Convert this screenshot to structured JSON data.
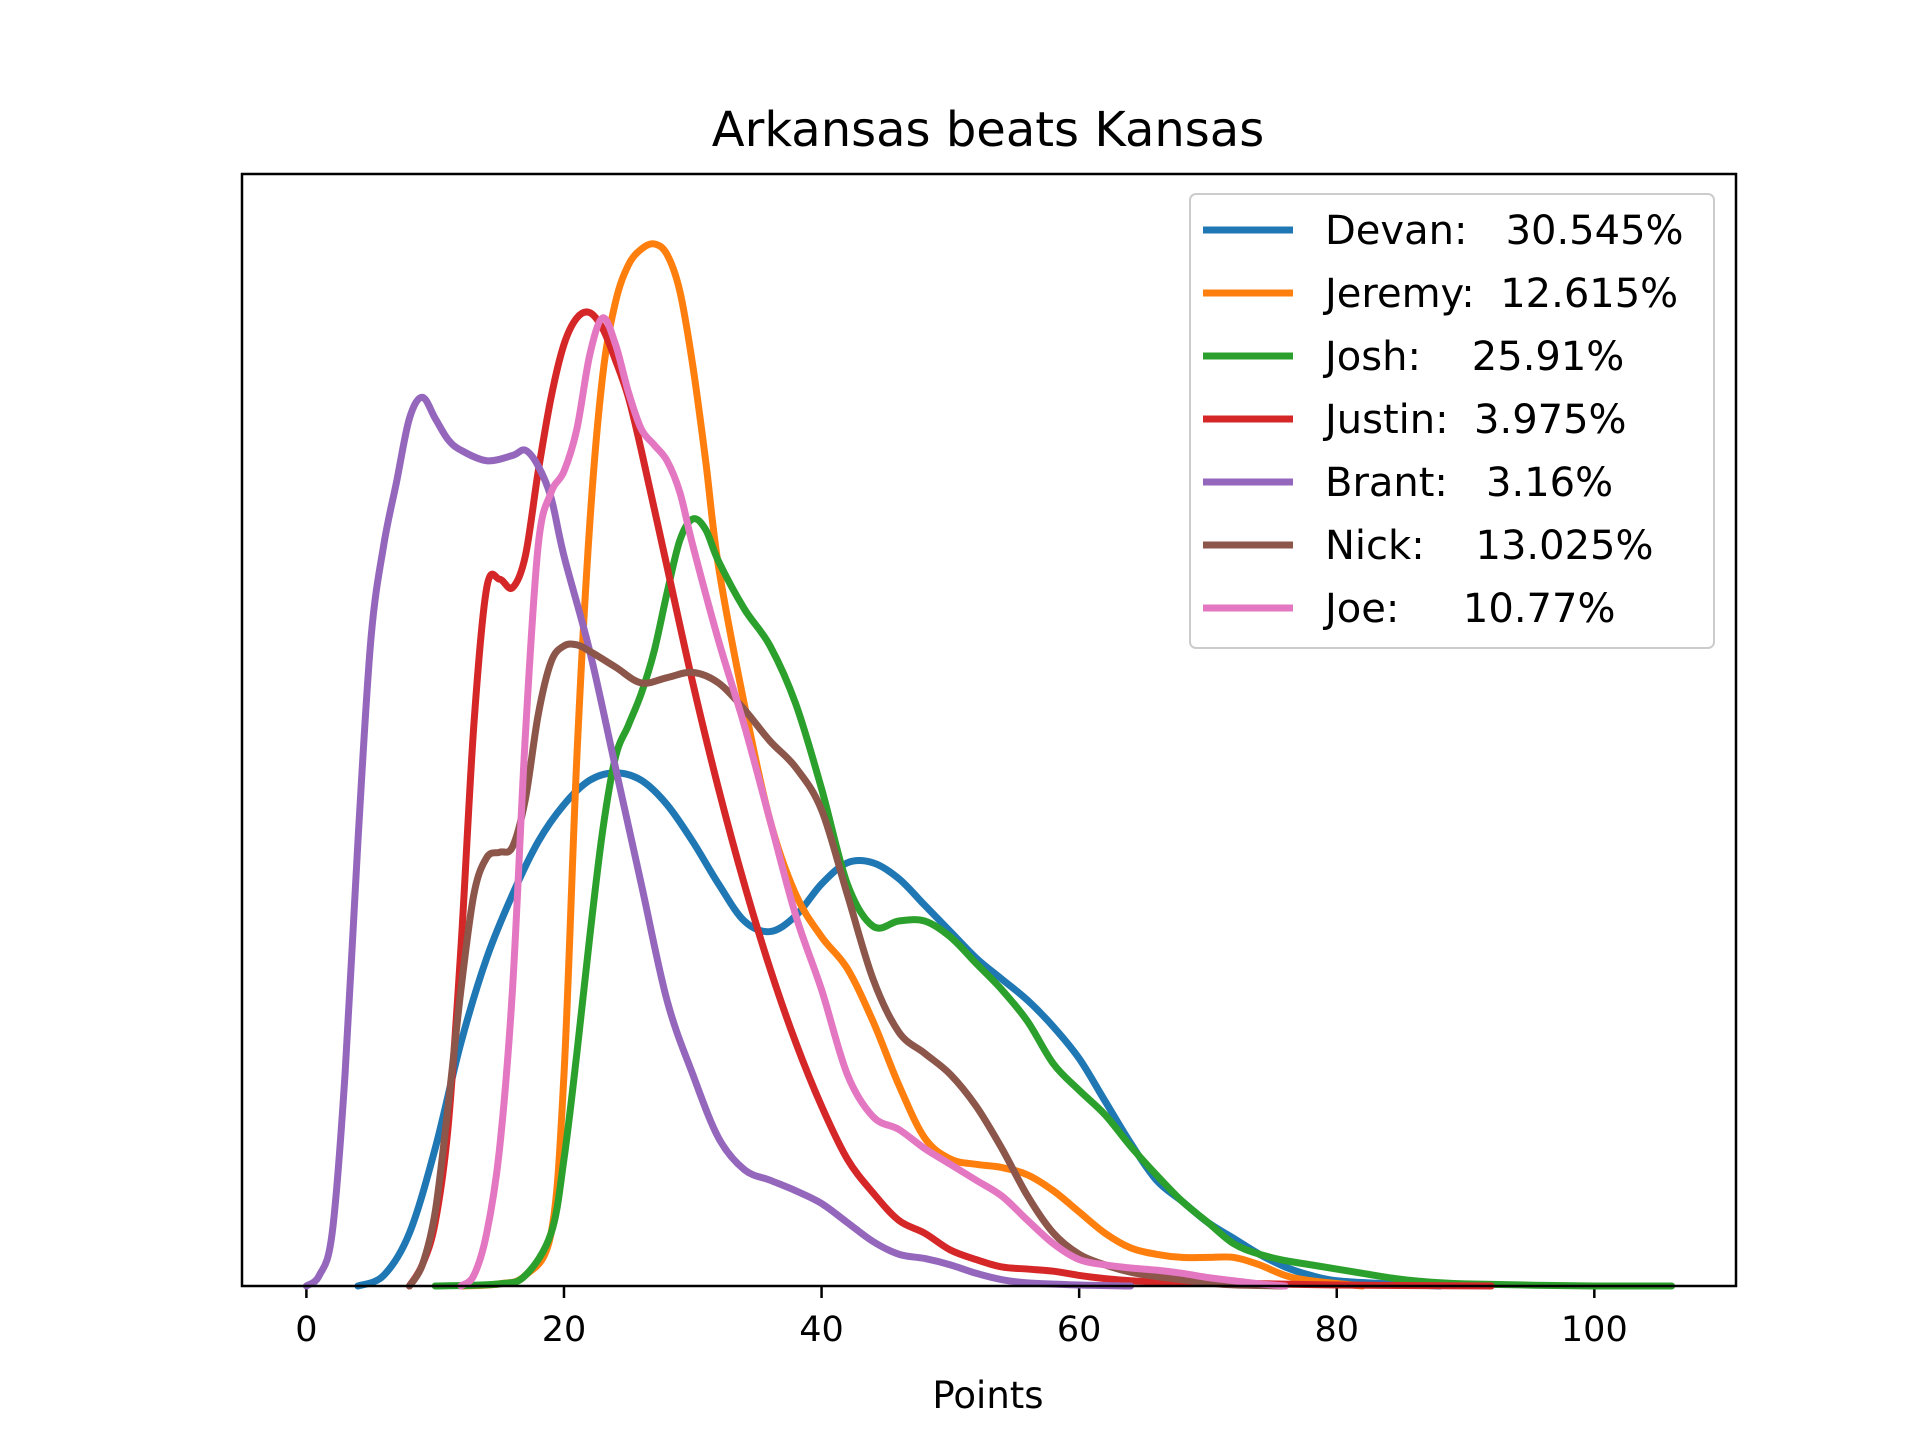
{
  "chart_data": {
    "type": "line",
    "title": "Arkansas beats Kansas",
    "xlabel": "Points",
    "ylabel": "",
    "xlim": [
      -5,
      111
    ],
    "ylim": [
      0,
      1.0
    ],
    "x_ticks": [
      "0",
      "20",
      "40",
      "60",
      "80",
      "100"
    ],
    "y_ticks_shown": false,
    "legend_position": "top-right",
    "series": [
      {
        "name": "Devan:   30.545%",
        "color": "#1f77b4",
        "points": [
          [
            4,
            0
          ],
          [
            6,
            0.01
          ],
          [
            8,
            0.05
          ],
          [
            10,
            0.13
          ],
          [
            12,
            0.23
          ],
          [
            14,
            0.31
          ],
          [
            16,
            0.37
          ],
          [
            18,
            0.42
          ],
          [
            20,
            0.455
          ],
          [
            22,
            0.478
          ],
          [
            24,
            0.485
          ],
          [
            26,
            0.478
          ],
          [
            28,
            0.455
          ],
          [
            30,
            0.42
          ],
          [
            32,
            0.38
          ],
          [
            34,
            0.345
          ],
          [
            36,
            0.335
          ],
          [
            38,
            0.35
          ],
          [
            40,
            0.38
          ],
          [
            42,
            0.4
          ],
          [
            44,
            0.4
          ],
          [
            46,
            0.385
          ],
          [
            48,
            0.36
          ],
          [
            50,
            0.335
          ],
          [
            52,
            0.31
          ],
          [
            54,
            0.29
          ],
          [
            56,
            0.27
          ],
          [
            58,
            0.245
          ],
          [
            60,
            0.215
          ],
          [
            62,
            0.175
          ],
          [
            64,
            0.135
          ],
          [
            66,
            0.1
          ],
          [
            68,
            0.08
          ],
          [
            70,
            0.06
          ],
          [
            72,
            0.045
          ],
          [
            74,
            0.03
          ],
          [
            76,
            0.018
          ],
          [
            78,
            0.01
          ],
          [
            80,
            0.005
          ],
          [
            84,
            0.002
          ],
          [
            88,
            0
          ]
        ]
      },
      {
        "name": "Jeremy:  12.615%",
        "color": "#ff7f0e",
        "points": [
          [
            12,
            0
          ],
          [
            15,
            0.002
          ],
          [
            17,
            0.01
          ],
          [
            19,
            0.05
          ],
          [
            20,
            0.2
          ],
          [
            21,
            0.5
          ],
          [
            22,
            0.72
          ],
          [
            23,
            0.86
          ],
          [
            24,
            0.93
          ],
          [
            25,
            0.965
          ],
          [
            26,
            0.98
          ],
          [
            27,
            0.985
          ],
          [
            28,
            0.975
          ],
          [
            29,
            0.94
          ],
          [
            30,
            0.87
          ],
          [
            31,
            0.78
          ],
          [
            32,
            0.68
          ],
          [
            34,
            0.55
          ],
          [
            36,
            0.44
          ],
          [
            38,
            0.37
          ],
          [
            40,
            0.33
          ],
          [
            42,
            0.3
          ],
          [
            44,
            0.25
          ],
          [
            46,
            0.19
          ],
          [
            48,
            0.14
          ],
          [
            50,
            0.12
          ],
          [
            52,
            0.115
          ],
          [
            54,
            0.112
          ],
          [
            56,
            0.105
          ],
          [
            58,
            0.09
          ],
          [
            60,
            0.07
          ],
          [
            62,
            0.05
          ],
          [
            64,
            0.036
          ],
          [
            66,
            0.03
          ],
          [
            68,
            0.027
          ],
          [
            70,
            0.027
          ],
          [
            72,
            0.027
          ],
          [
            74,
            0.02
          ],
          [
            76,
            0.01
          ],
          [
            78,
            0.005
          ],
          [
            82,
            0
          ]
        ]
      },
      {
        "name": "Josh:    25.91%",
        "color": "#2ca02c",
        "points": [
          [
            10,
            0
          ],
          [
            15,
            0.002
          ],
          [
            17,
            0.01
          ],
          [
            19,
            0.05
          ],
          [
            20,
            0.12
          ],
          [
            21,
            0.22
          ],
          [
            22,
            0.33
          ],
          [
            23,
            0.43
          ],
          [
            24,
            0.5
          ],
          [
            25,
            0.53
          ],
          [
            26,
            0.56
          ],
          [
            27,
            0.6
          ],
          [
            28,
            0.655
          ],
          [
            29,
            0.705
          ],
          [
            30,
            0.725
          ],
          [
            31,
            0.715
          ],
          [
            32,
            0.685
          ],
          [
            34,
            0.64
          ],
          [
            36,
            0.605
          ],
          [
            38,
            0.55
          ],
          [
            40,
            0.47
          ],
          [
            42,
            0.38
          ],
          [
            44,
            0.34
          ],
          [
            46,
            0.345
          ],
          [
            48,
            0.345
          ],
          [
            50,
            0.33
          ],
          [
            52,
            0.305
          ],
          [
            54,
            0.28
          ],
          [
            56,
            0.25
          ],
          [
            58,
            0.21
          ],
          [
            60,
            0.185
          ],
          [
            62,
            0.162
          ],
          [
            64,
            0.132
          ],
          [
            66,
            0.105
          ],
          [
            68,
            0.08
          ],
          [
            70,
            0.06
          ],
          [
            72,
            0.04
          ],
          [
            74,
            0.03
          ],
          [
            76,
            0.024
          ],
          [
            78,
            0.02
          ],
          [
            80,
            0.016
          ],
          [
            82,
            0.012
          ],
          [
            84,
            0.008
          ],
          [
            86,
            0.005
          ],
          [
            90,
            0.002
          ],
          [
            100,
            0
          ],
          [
            106,
            0
          ]
        ]
      },
      {
        "name": "Justin:  3.975%",
        "color": "#d62728",
        "points": [
          [
            8,
            0
          ],
          [
            9,
            0.02
          ],
          [
            10,
            0.06
          ],
          [
            11,
            0.15
          ],
          [
            12,
            0.32
          ],
          [
            13,
            0.53
          ],
          [
            14,
            0.66
          ],
          [
            15,
            0.668
          ],
          [
            16,
            0.66
          ],
          [
            17,
            0.69
          ],
          [
            18,
            0.77
          ],
          [
            19,
            0.84
          ],
          [
            20,
            0.89
          ],
          [
            21,
            0.915
          ],
          [
            22,
            0.92
          ],
          [
            23,
            0.905
          ],
          [
            24,
            0.875
          ],
          [
            25,
            0.84
          ],
          [
            26,
            0.79
          ],
          [
            28,
            0.68
          ],
          [
            30,
            0.57
          ],
          [
            32,
            0.47
          ],
          [
            34,
            0.38
          ],
          [
            36,
            0.3
          ],
          [
            38,
            0.23
          ],
          [
            40,
            0.17
          ],
          [
            42,
            0.12
          ],
          [
            44,
            0.088
          ],
          [
            46,
            0.062
          ],
          [
            48,
            0.05
          ],
          [
            50,
            0.034
          ],
          [
            52,
            0.025
          ],
          [
            54,
            0.018
          ],
          [
            56,
            0.016
          ],
          [
            58,
            0.014
          ],
          [
            60,
            0.01
          ],
          [
            62,
            0.007
          ],
          [
            64,
            0.005
          ],
          [
            66,
            0.004
          ],
          [
            70,
            0.003
          ],
          [
            80,
            0.001
          ],
          [
            92,
            0
          ]
        ]
      },
      {
        "name": "Brant:   3.16%",
        "color": "#9467bd",
        "points": [
          [
            0,
            0
          ],
          [
            1,
            0.01
          ],
          [
            2,
            0.05
          ],
          [
            3,
            0.2
          ],
          [
            4,
            0.42
          ],
          [
            5,
            0.61
          ],
          [
            6,
            0.7
          ],
          [
            7,
            0.76
          ],
          [
            8,
            0.82
          ],
          [
            9,
            0.84
          ],
          [
            10,
            0.82
          ],
          [
            11,
            0.8
          ],
          [
            12,
            0.79
          ],
          [
            14,
            0.78
          ],
          [
            16,
            0.785
          ],
          [
            17,
            0.79
          ],
          [
            18,
            0.775
          ],
          [
            19,
            0.745
          ],
          [
            20,
            0.69
          ],
          [
            22,
            0.6
          ],
          [
            24,
            0.49
          ],
          [
            26,
            0.38
          ],
          [
            28,
            0.27
          ],
          [
            30,
            0.2
          ],
          [
            32,
            0.14
          ],
          [
            34,
            0.11
          ],
          [
            36,
            0.1
          ],
          [
            38,
            0.09
          ],
          [
            40,
            0.078
          ],
          [
            42,
            0.06
          ],
          [
            44,
            0.042
          ],
          [
            46,
            0.03
          ],
          [
            48,
            0.026
          ],
          [
            50,
            0.02
          ],
          [
            52,
            0.012
          ],
          [
            54,
            0.006
          ],
          [
            56,
            0.003
          ],
          [
            60,
            0.001
          ],
          [
            64,
            0
          ]
        ]
      },
      {
        "name": "Nick:    13.025%",
        "color": "#8c564b",
        "points": [
          [
            8,
            0
          ],
          [
            9,
            0.02
          ],
          [
            10,
            0.07
          ],
          [
            11,
            0.17
          ],
          [
            12,
            0.28
          ],
          [
            13,
            0.37
          ],
          [
            14,
            0.405
          ],
          [
            15,
            0.41
          ],
          [
            16,
            0.415
          ],
          [
            17,
            0.46
          ],
          [
            18,
            0.54
          ],
          [
            19,
            0.59
          ],
          [
            20,
            0.605
          ],
          [
            21,
            0.606
          ],
          [
            22,
            0.6
          ],
          [
            24,
            0.585
          ],
          [
            26,
            0.57
          ],
          [
            28,
            0.575
          ],
          [
            30,
            0.58
          ],
          [
            32,
            0.57
          ],
          [
            34,
            0.545
          ],
          [
            36,
            0.515
          ],
          [
            38,
            0.49
          ],
          [
            40,
            0.45
          ],
          [
            42,
            0.37
          ],
          [
            44,
            0.29
          ],
          [
            46,
            0.24
          ],
          [
            48,
            0.22
          ],
          [
            50,
            0.2
          ],
          [
            52,
            0.17
          ],
          [
            54,
            0.13
          ],
          [
            56,
            0.085
          ],
          [
            58,
            0.05
          ],
          [
            60,
            0.03
          ],
          [
            62,
            0.02
          ],
          [
            64,
            0.013
          ],
          [
            66,
            0.009
          ],
          [
            68,
            0.006
          ],
          [
            70,
            0.003
          ],
          [
            72,
            0.001
          ],
          [
            76,
            0
          ]
        ]
      },
      {
        "name": "Joe:     10.77%",
        "color": "#e377c2",
        "points": [
          [
            12,
            0
          ],
          [
            13,
            0.01
          ],
          [
            14,
            0.05
          ],
          [
            15,
            0.13
          ],
          [
            16,
            0.28
          ],
          [
            17,
            0.52
          ],
          [
            18,
            0.7
          ],
          [
            19,
            0.75
          ],
          [
            20,
            0.77
          ],
          [
            21,
            0.81
          ],
          [
            22,
            0.88
          ],
          [
            23,
            0.915
          ],
          [
            24,
            0.89
          ],
          [
            25,
            0.845
          ],
          [
            26,
            0.81
          ],
          [
            27,
            0.795
          ],
          [
            28,
            0.78
          ],
          [
            29,
            0.75
          ],
          [
            30,
            0.7
          ],
          [
            32,
            0.61
          ],
          [
            34,
            0.53
          ],
          [
            36,
            0.44
          ],
          [
            38,
            0.35
          ],
          [
            40,
            0.28
          ],
          [
            42,
            0.2
          ],
          [
            44,
            0.16
          ],
          [
            46,
            0.148
          ],
          [
            48,
            0.13
          ],
          [
            50,
            0.115
          ],
          [
            52,
            0.1
          ],
          [
            54,
            0.085
          ],
          [
            56,
            0.062
          ],
          [
            58,
            0.04
          ],
          [
            60,
            0.025
          ],
          [
            62,
            0.02
          ],
          [
            64,
            0.017
          ],
          [
            66,
            0.015
          ],
          [
            68,
            0.012
          ],
          [
            70,
            0.008
          ],
          [
            72,
            0.005
          ],
          [
            74,
            0.002
          ],
          [
            76,
            0
          ]
        ]
      }
    ]
  }
}
